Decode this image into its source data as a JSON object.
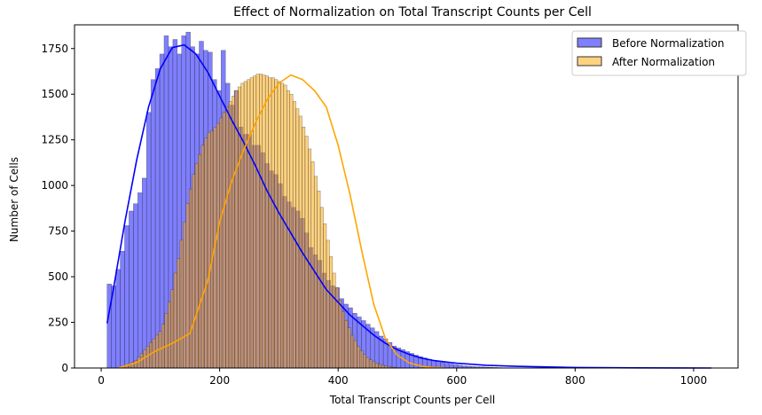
{
  "chart_data": {
    "type": "histogram",
    "title": "Effect of Normalization on Total Transcript Counts per Cell",
    "xlabel": "Total Transcript Counts per Cell",
    "ylabel": "Number of Cells",
    "xlim": [
      -45,
      1075
    ],
    "ylim": [
      0,
      1880
    ],
    "x_ticks": [
      0,
      200,
      400,
      600,
      800,
      1000
    ],
    "y_ticks": [
      0,
      250,
      500,
      750,
      1000,
      1250,
      1500,
      1750
    ],
    "legend_position": "top-right",
    "grid": false,
    "series": [
      {
        "name": "Before Normalization",
        "color": "#0000ff",
        "bin_start": 10,
        "bin_width": 7.4,
        "values": [
          460,
          450,
          540,
          640,
          780,
          860,
          900,
          960,
          1040,
          1400,
          1580,
          1640,
          1720,
          1820,
          1760,
          1800,
          1720,
          1820,
          1840,
          1760,
          1720,
          1790,
          1740,
          1730,
          1580,
          1520,
          1740,
          1560,
          1440,
          1520,
          1320,
          1280,
          1280,
          1220,
          1220,
          1180,
          1120,
          1080,
          1060,
          1010,
          940,
          910,
          880,
          860,
          820,
          740,
          660,
          620,
          590,
          520,
          480,
          450,
          440,
          380,
          350,
          330,
          300,
          280,
          260,
          240,
          220,
          200,
          175,
          160,
          140,
          120,
          110,
          100,
          90,
          80,
          70,
          62,
          55,
          48,
          42,
          36,
          30,
          26,
          22,
          18,
          15,
          12,
          10,
          8,
          7,
          6,
          5,
          4,
          3,
          2
        ]
      },
      {
        "name": "After Normalization",
        "color": "#ffa500",
        "bin_start": 30,
        "bin_width": 5.15,
        "values": [
          6,
          10,
          15,
          22,
          30,
          42,
          60,
          80,
          100,
          120,
          140,
          160,
          180,
          200,
          240,
          300,
          360,
          430,
          520,
          600,
          700,
          800,
          900,
          980,
          1060,
          1120,
          1170,
          1220,
          1260,
          1290,
          1300,
          1320,
          1340,
          1370,
          1400,
          1430,
          1460,
          1490,
          1520,
          1540,
          1560,
          1570,
          1580,
          1590,
          1600,
          1610,
          1610,
          1605,
          1600,
          1590,
          1590,
          1580,
          1570,
          1560,
          1550,
          1520,
          1500,
          1460,
          1420,
          1380,
          1320,
          1270,
          1200,
          1130,
          1050,
          970,
          880,
          790,
          700,
          610,
          520,
          440,
          370,
          310,
          260,
          220,
          180,
          150,
          120,
          95,
          75,
          58,
          45,
          35,
          27,
          20,
          15,
          11,
          8,
          5,
          3,
          2,
          1
        ]
      }
    ],
    "kde": [
      {
        "name": "Before Normalization",
        "color": "#0000ff",
        "x": [
          10,
          20,
          40,
          60,
          80,
          100,
          120,
          140,
          160,
          180,
          200,
          220,
          240,
          260,
          280,
          300,
          320,
          340,
          360,
          380,
          400,
          420,
          440,
          460,
          480,
          500,
          520,
          540,
          560,
          600,
          650,
          700,
          800,
          900,
          1030
        ],
        "y": [
          245,
          420,
          800,
          1140,
          1430,
          1640,
          1755,
          1770,
          1720,
          1620,
          1490,
          1360,
          1240,
          1110,
          970,
          850,
          740,
          630,
          530,
          430,
          360,
          290,
          235,
          180,
          135,
          100,
          75,
          55,
          42,
          26,
          15,
          9,
          3,
          1,
          0
        ]
      },
      {
        "name": "After Normalization",
        "color": "#ffa500",
        "x": [
          30,
          60,
          90,
          120,
          150,
          180,
          200,
          220,
          240,
          260,
          280,
          300,
          320,
          340,
          360,
          380,
          400,
          420,
          440,
          460,
          480,
          500,
          520,
          540,
          560,
          580
        ],
        "y": [
          2,
          30,
          90,
          135,
          190,
          480,
          800,
          1020,
          1190,
          1340,
          1470,
          1560,
          1605,
          1580,
          1520,
          1430,
          1220,
          950,
          640,
          350,
          160,
          70,
          28,
          10,
          3,
          1
        ]
      }
    ]
  }
}
